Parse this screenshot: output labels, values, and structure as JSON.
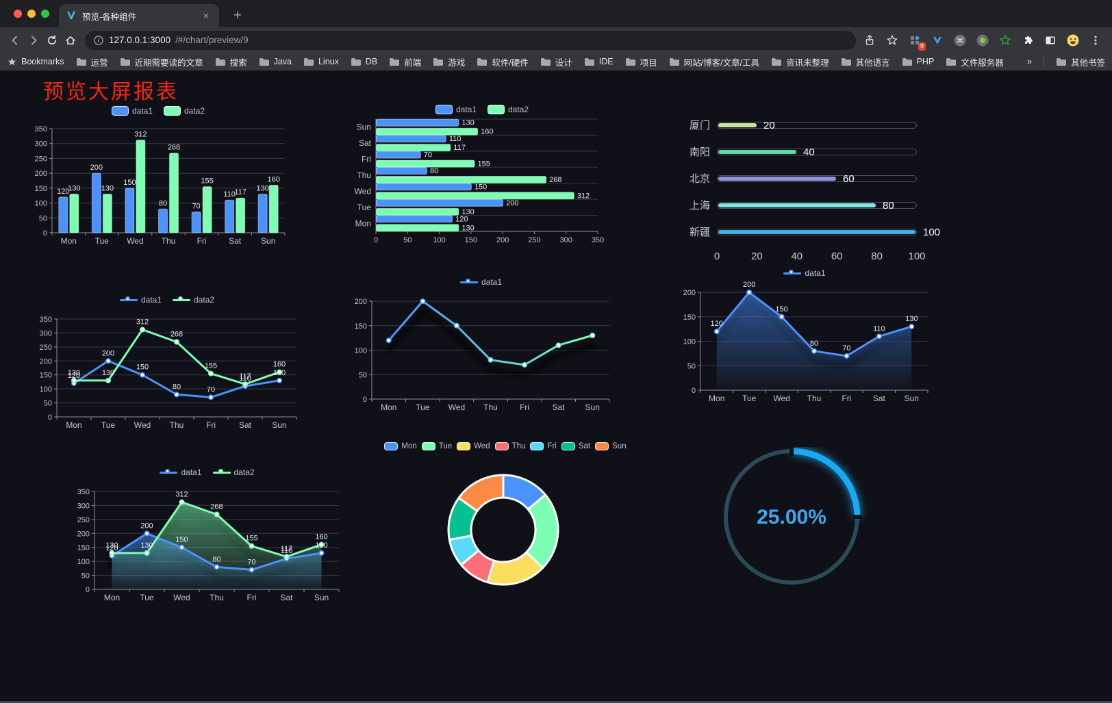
{
  "browser": {
    "tab_title": "预览-各种组件",
    "url_host": "127.0.0.1:3000",
    "url_path": "/#/chart/preview/9",
    "extension_badge": "9",
    "bookmarks_label": "Bookmarks",
    "bookmarks": [
      "运营",
      "近期需要读的文章",
      "搜索",
      "Java",
      "Linux",
      "DB",
      "前端",
      "游戏",
      "软件/硬件",
      "设计",
      "IDE",
      "项目",
      "网站/博客/文章/工具",
      "资讯未整理",
      "其他语言",
      "PHP",
      "文件服务器"
    ],
    "bookmarks_overflow": "»",
    "other_bookmarks": "其他书签"
  },
  "page": {
    "title": "预览大屏报表",
    "title_color": "#f5250e",
    "background": "#101118"
  },
  "chart_data": [
    {
      "id": "bar-vertical",
      "type": "bar",
      "categories": [
        "Mon",
        "Tue",
        "Wed",
        "Thu",
        "Fri",
        "Sat",
        "Sun"
      ],
      "series": [
        {
          "name": "data1",
          "color": "#4992ff",
          "values": [
            120,
            200,
            150,
            80,
            70,
            110,
            130
          ]
        },
        {
          "name": "data2",
          "color": "#7cffb2",
          "values": [
            130,
            130,
            312,
            268,
            155,
            117,
            160
          ]
        }
      ],
      "ylim": [
        0,
        350
      ],
      "ytick": 50,
      "legend_position": "top",
      "grid": true
    },
    {
      "id": "bar-horizontal",
      "type": "hbar",
      "categories": [
        "Mon",
        "Tue",
        "Wed",
        "Thu",
        "Fri",
        "Sat",
        "Sun"
      ],
      "series": [
        {
          "name": "data1",
          "color": "#4992ff",
          "values": [
            120,
            200,
            150,
            80,
            70,
            110,
            130
          ]
        },
        {
          "name": "data2",
          "color": "#7cffb2",
          "values": [
            130,
            130,
            312,
            268,
            155,
            117,
            160
          ]
        }
      ],
      "xlim": [
        0,
        350
      ],
      "xtick": 50,
      "legend_position": "top",
      "grid": true
    },
    {
      "id": "progress-list",
      "type": "progress",
      "max": 100,
      "axis_ticks": [
        0,
        20,
        40,
        60,
        80,
        100
      ],
      "rows": [
        {
          "label": "厦门",
          "value": 20,
          "color": "#c6e79c"
        },
        {
          "label": "南阳",
          "value": 40,
          "color": "#5ed9a6"
        },
        {
          "label": "北京",
          "value": 60,
          "color": "#8d95e3"
        },
        {
          "label": "上海",
          "value": 80,
          "color": "#7fe6e3"
        },
        {
          "label": "新疆",
          "value": 100,
          "color": "#40b2e2"
        }
      ]
    },
    {
      "id": "line-two-series",
      "type": "line",
      "categories": [
        "Mon",
        "Tue",
        "Wed",
        "Thu",
        "Fri",
        "Sat",
        "Sun"
      ],
      "series": [
        {
          "name": "data1",
          "color": "#4992ff",
          "values": [
            120,
            200,
            150,
            80,
            70,
            110,
            130
          ]
        },
        {
          "name": "data2",
          "color": "#7cffb2",
          "values": [
            130,
            130,
            312,
            268,
            155,
            117,
            160
          ]
        }
      ],
      "ylim": [
        0,
        350
      ],
      "ytick": 50,
      "show_labels": true,
      "shadow": false
    },
    {
      "id": "line-gradient",
      "type": "line",
      "categories": [
        "Mon",
        "Tue",
        "Wed",
        "Thu",
        "Fri",
        "Sat",
        "Sun"
      ],
      "series": [
        {
          "name": "data1",
          "gradient": [
            "#4992ff",
            "#7cffb2"
          ],
          "values": [
            120,
            200,
            150,
            80,
            70,
            110,
            130
          ]
        }
      ],
      "ylim": [
        0,
        200
      ],
      "ytick": 50,
      "show_labels": false,
      "shadow": true
    },
    {
      "id": "line-area",
      "type": "line",
      "categories": [
        "Mon",
        "Tue",
        "Wed",
        "Thu",
        "Fri",
        "Sat",
        "Sun"
      ],
      "series": [
        {
          "name": "data1",
          "color": "#4992ff",
          "area": true,
          "values": [
            120,
            200,
            150,
            80,
            70,
            110,
            130
          ]
        }
      ],
      "ylim": [
        0,
        200
      ],
      "ytick": 50,
      "show_labels": true,
      "shadow": true
    },
    {
      "id": "line-two-area",
      "type": "line",
      "categories": [
        "Mon",
        "Tue",
        "Wed",
        "Thu",
        "Fri",
        "Sat",
        "Sun"
      ],
      "series": [
        {
          "name": "data1",
          "color": "#4992ff",
          "area": true,
          "values": [
            120,
            200,
            150,
            80,
            70,
            110,
            130
          ]
        },
        {
          "name": "data2",
          "color": "#7cffb2",
          "area": true,
          "values": [
            130,
            130,
            312,
            268,
            155,
            117,
            160
          ]
        }
      ],
      "ylim": [
        0,
        350
      ],
      "ytick": 50,
      "show_labels": true,
      "shadow": true
    },
    {
      "id": "donut",
      "type": "pie",
      "labels": [
        "Mon",
        "Tue",
        "Wed",
        "Thu",
        "Fri",
        "Sat",
        "Sun"
      ],
      "values": [
        120,
        200,
        150,
        80,
        70,
        110,
        130
      ],
      "colors": [
        "#4992ff",
        "#7cffb2",
        "#fddd60",
        "#ff6e76",
        "#58d9f9",
        "#05c091",
        "#ff8a45"
      ],
      "border_color": "#ffffff"
    },
    {
      "id": "gauge",
      "type": "gauge",
      "value": 25,
      "display": "25.00%",
      "color": "#18a9f2",
      "track_color": "#2b4b59",
      "text_color": "#3ca7f0"
    }
  ]
}
